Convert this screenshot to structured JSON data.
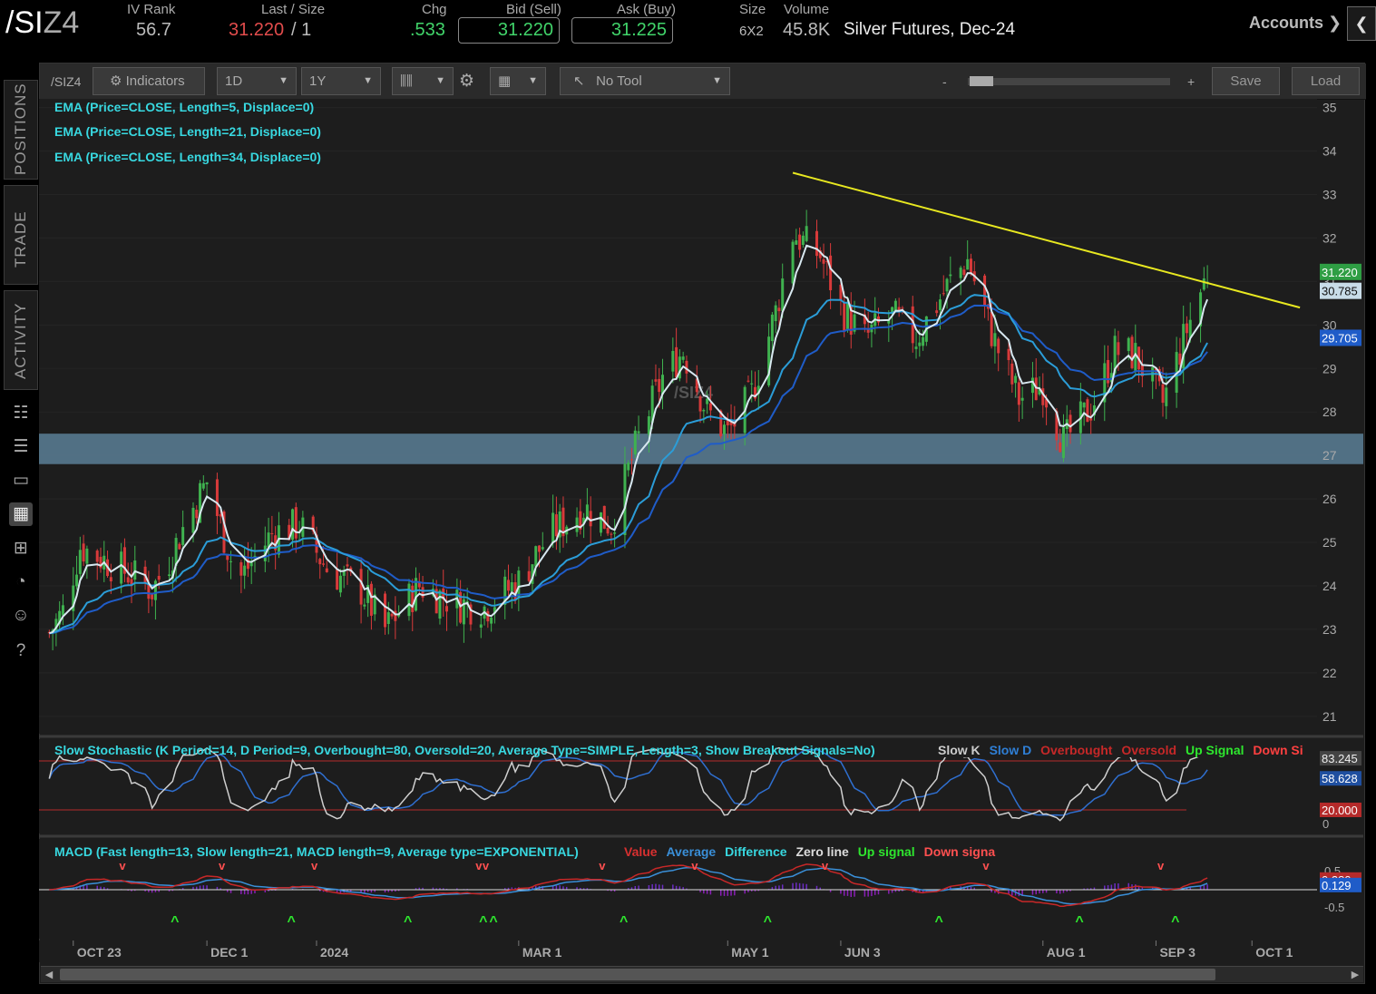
{
  "header": {
    "symbol_main": "/SI",
    "symbol_suffix": "Z4",
    "iv_rank_label": "IV Rank",
    "iv_rank_value": "56.7",
    "last_size_label": "Last / Size",
    "last_value": "31.220",
    "size_value": "/ 1",
    "chg_label": "Chg",
    "chg_value": ".533",
    "bid_label": "Bid (Sell)",
    "bid_value": "31.220",
    "ask_label": "Ask (Buy)",
    "ask_value": "31.225",
    "size_label": "Size",
    "size_detail": "6X2",
    "volume_label": "Volume",
    "volume_value": "45.8K",
    "description": "Silver Futures, Dec-24",
    "accounts_label": "Accounts",
    "collapse_icon": "chevron-left-icon"
  },
  "rail": {
    "tabs": [
      "POSITIONS",
      "TRADE",
      "ACTIVITY"
    ],
    "icons": [
      "watchlist-icon",
      "list-icon",
      "tv-icon",
      "chart-icon",
      "grid-icon",
      "gauge-icon",
      "users-icon",
      "help-icon"
    ]
  },
  "toolbar": {
    "symbol": "/SIZ4",
    "indicators_label": "Indicators",
    "aggregation": "1D",
    "range": "1Y",
    "tool": "No Tool",
    "zoom_minus": "-",
    "zoom_plus": "+",
    "save_label": "Save",
    "load_label": "Load"
  },
  "studies": {
    "ema5": "EMA (Price=CLOSE, Length=5, Displace=0)",
    "ema21": "EMA (Price=CLOSE, Length=21, Displace=0)",
    "ema34": "EMA (Price=CLOSE, Length=34, Displace=0)",
    "watermark": "/SIZ4",
    "stoch_title": "Slow Stochastic (K Period=14, D Period=9, Overbought=80, Oversold=20, Average Type=SIMPLE, Length=3, Show Breakout Signals=No)",
    "stoch_legend": [
      {
        "text": "Slow K",
        "color": "#cccccc"
      },
      {
        "text": "Slow D",
        "color": "#2f7fd6"
      },
      {
        "text": "Overbought",
        "color": "#c62828"
      },
      {
        "text": "Oversold",
        "color": "#c62828"
      },
      {
        "text": "Up Signal",
        "color": "#2ee62e"
      },
      {
        "text": "Down Si",
        "color": "#ff4040"
      }
    ],
    "macd_title": "MACD (Fast length=13, Slow length=21, MACD length=9, Average type=EXPONENTIAL)",
    "macd_legend": [
      {
        "text": "Value",
        "color": "#d83030"
      },
      {
        "text": "Average",
        "color": "#3a8fd8"
      },
      {
        "text": "Difference",
        "color": "#38d8e0"
      },
      {
        "text": "Zero line",
        "color": "#dddddd"
      },
      {
        "text": "Up signal",
        "color": "#2ee62e"
      },
      {
        "text": "Down signa",
        "color": "#ff5050"
      }
    ]
  },
  "colors": {
    "up_candle": "#3fb24f",
    "down_candle": "#d83a3a",
    "ema5": "#d8e8f0",
    "ema21": "#2b9dd8",
    "ema34": "#1f5cc8",
    "trendline": "#e8e820",
    "support_zone": "#5b7f96",
    "last_price_tag": "#2f9e44"
  },
  "chart_data": {
    "type": "candlestick",
    "title": "",
    "x_tick_labels": [
      "OCT 23",
      "DEC 1",
      "2024",
      "MAR 1",
      "MAY 1",
      "JUN 3",
      "AUG 1",
      "SEP 3",
      "OCT 1"
    ],
    "y_tick_labels": [
      "35",
      "34",
      "33",
      "32",
      "31",
      "30",
      "29",
      "28",
      "27",
      "26",
      "25",
      "24",
      "23",
      "22",
      "21"
    ],
    "ylim": [
      20.6,
      35.2
    ],
    "price_tags": [
      {
        "label": "31.220",
        "value": 31.22,
        "color": "#2f9e44"
      },
      {
        "label": "30.785",
        "value": 30.785,
        "color": "#c8dce8"
      },
      {
        "label": "29.705",
        "value": 29.705,
        "color": "#1f5cc8"
      }
    ],
    "close_approx": [
      {
        "date": "2023-10-15",
        "close": 22.8
      },
      {
        "date": "2023-10-20",
        "close": 23.4
      },
      {
        "date": "2023-10-25",
        "close": 24.9
      },
      {
        "date": "2023-11-01",
        "close": 24.6
      },
      {
        "date": "2023-11-10",
        "close": 24.2
      },
      {
        "date": "2023-11-15",
        "close": 23.9
      },
      {
        "date": "2023-11-20",
        "close": 24.6
      },
      {
        "date": "2023-11-25",
        "close": 25.5
      },
      {
        "date": "2023-12-01",
        "close": 26.4
      },
      {
        "date": "2023-12-05",
        "close": 25.4
      },
      {
        "date": "2023-12-10",
        "close": 24.1
      },
      {
        "date": "2023-12-20",
        "close": 25.2
      },
      {
        "date": "2023-12-28",
        "close": 25.4
      },
      {
        "date": "2024-01-05",
        "close": 24.4
      },
      {
        "date": "2024-01-15",
        "close": 23.9
      },
      {
        "date": "2024-01-22",
        "close": 23.0
      },
      {
        "date": "2024-02-01",
        "close": 24.0
      },
      {
        "date": "2024-02-12",
        "close": 23.6
      },
      {
        "date": "2024-02-20",
        "close": 23.5
      },
      {
        "date": "2024-03-01",
        "close": 24.1
      },
      {
        "date": "2024-03-10",
        "close": 25.2
      },
      {
        "date": "2024-03-20",
        "close": 25.8
      },
      {
        "date": "2024-03-28",
        "close": 25.4
      },
      {
        "date": "2024-04-05",
        "close": 27.4
      },
      {
        "date": "2024-04-12",
        "close": 28.8
      },
      {
        "date": "2024-04-18",
        "close": 29.4
      },
      {
        "date": "2024-04-25",
        "close": 28.0
      },
      {
        "date": "2024-05-01",
        "close": 27.5
      },
      {
        "date": "2024-05-08",
        "close": 28.4
      },
      {
        "date": "2024-05-15",
        "close": 30.3
      },
      {
        "date": "2024-05-20",
        "close": 32.1
      },
      {
        "date": "2024-05-28",
        "close": 31.6
      },
      {
        "date": "2024-06-03",
        "close": 30.4
      },
      {
        "date": "2024-06-10",
        "close": 29.7
      },
      {
        "date": "2024-06-18",
        "close": 30.2
      },
      {
        "date": "2024-06-25",
        "close": 29.7
      },
      {
        "date": "2024-07-05",
        "close": 31.0
      },
      {
        "date": "2024-07-10",
        "close": 31.5
      },
      {
        "date": "2024-07-18",
        "close": 29.6
      },
      {
        "date": "2024-07-25",
        "close": 28.3
      },
      {
        "date": "2024-08-01",
        "close": 28.6
      },
      {
        "date": "2024-08-07",
        "close": 27.3
      },
      {
        "date": "2024-08-15",
        "close": 28.1
      },
      {
        "date": "2024-08-22",
        "close": 29.4
      },
      {
        "date": "2024-08-28",
        "close": 29.3
      },
      {
        "date": "2024-09-05",
        "close": 28.2
      },
      {
        "date": "2024-09-12",
        "close": 29.9
      },
      {
        "date": "2024-09-18",
        "close": 31.2
      }
    ],
    "trendline": [
      {
        "date": "2024-05-20",
        "price": 33.5
      },
      {
        "date": "2024-10-15",
        "price": 30.4
      }
    ],
    "support_zone": [
      26.8,
      27.5
    ],
    "stochastic": {
      "y_tick_labels": [
        "0"
      ],
      "overbought": 80,
      "oversold": 20,
      "slow_k_last": "83.245",
      "slow_d_last": "58.628",
      "oversold_tag": "20.000"
    },
    "macd": {
      "y_tick_labels": [
        "0.5",
        "-0.5"
      ],
      "value_last": "0.280",
      "average_last": "0.129"
    }
  }
}
